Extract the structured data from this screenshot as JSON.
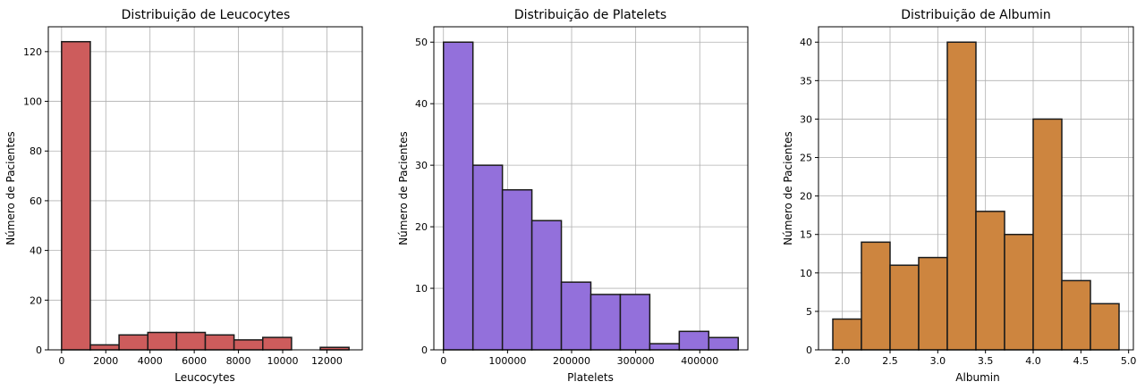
{
  "chart_data": [
    {
      "type": "bar",
      "title": "Distribuição de Leucocytes",
      "xlabel": "Leucocytes",
      "ylabel": "Número de Pacientes",
      "color": "#cd5c5c",
      "xlim": [
        -600,
        13600
      ],
      "ylim": [
        0,
        130
      ],
      "xticks": [
        0,
        2000,
        4000,
        6000,
        8000,
        10000,
        12000
      ],
      "yticks": [
        0,
        20,
        40,
        60,
        80,
        100,
        120
      ],
      "grid": true,
      "bins": [
        {
          "x0": 0,
          "x1": 1300,
          "count": 124
        },
        {
          "x0": 1300,
          "x1": 2600,
          "count": 2
        },
        {
          "x0": 2600,
          "x1": 3900,
          "count": 6
        },
        {
          "x0": 3900,
          "x1": 5200,
          "count": 7
        },
        {
          "x0": 5200,
          "x1": 6500,
          "count": 7
        },
        {
          "x0": 6500,
          "x1": 7800,
          "count": 6
        },
        {
          "x0": 7800,
          "x1": 9100,
          "count": 4
        },
        {
          "x0": 9100,
          "x1": 10400,
          "count": 5
        },
        {
          "x0": 10400,
          "x1": 11700,
          "count": 0
        },
        {
          "x0": 11700,
          "x1": 13000,
          "count": 1
        }
      ]
    },
    {
      "type": "bar",
      "title": "Distribuição de Platelets",
      "xlabel": "Platelets",
      "ylabel": "Número de Pacientes",
      "color": "#9370db",
      "xlim": [
        -15000,
        475000
      ],
      "ylim": [
        0,
        52.5
      ],
      "xticks": [
        0,
        100000,
        200000,
        300000,
        400000
      ],
      "yticks": [
        0,
        10,
        20,
        30,
        40,
        50
      ],
      "grid": true,
      "bins": [
        {
          "x0": 0,
          "x1": 46000,
          "count": 50
        },
        {
          "x0": 46000,
          "x1": 92000,
          "count": 30
        },
        {
          "x0": 92000,
          "x1": 138000,
          "count": 26
        },
        {
          "x0": 138000,
          "x1": 184000,
          "count": 21
        },
        {
          "x0": 184000,
          "x1": 230000,
          "count": 11
        },
        {
          "x0": 230000,
          "x1": 276000,
          "count": 9
        },
        {
          "x0": 276000,
          "x1": 322000,
          "count": 9
        },
        {
          "x0": 322000,
          "x1": 368000,
          "count": 1
        },
        {
          "x0": 368000,
          "x1": 414000,
          "count": 3
        },
        {
          "x0": 414000,
          "x1": 460000,
          "count": 2
        }
      ]
    },
    {
      "type": "bar",
      "title": "Distribuição de  Albumin",
      "xlabel": "Albumin",
      "ylabel": "Número de Pacientes",
      "color": "#cd853f",
      "xlim": [
        1.75,
        5.05
      ],
      "ylim": [
        0,
        42
      ],
      "xticks": [
        "2.0",
        "2.5",
        "3.0",
        "3.5",
        "4.0",
        "4.5",
        "5.0"
      ],
      "yticks": [
        0,
        5,
        10,
        15,
        20,
        25,
        30,
        35,
        40
      ],
      "grid": true,
      "bins": [
        {
          "x0": 1.9,
          "x1": 2.2,
          "count": 4
        },
        {
          "x0": 2.2,
          "x1": 2.5,
          "count": 14
        },
        {
          "x0": 2.5,
          "x1": 2.8,
          "count": 11
        },
        {
          "x0": 2.8,
          "x1": 3.1,
          "count": 12
        },
        {
          "x0": 3.1,
          "x1": 3.4,
          "count": 40
        },
        {
          "x0": 3.4,
          "x1": 3.7,
          "count": 18
        },
        {
          "x0": 3.7,
          "x1": 4.0,
          "count": 15
        },
        {
          "x0": 4.0,
          "x1": 4.3,
          "count": 30
        },
        {
          "x0": 4.3,
          "x1": 4.6,
          "count": 9
        },
        {
          "x0": 4.6,
          "x1": 4.9,
          "count": 6
        }
      ]
    }
  ]
}
